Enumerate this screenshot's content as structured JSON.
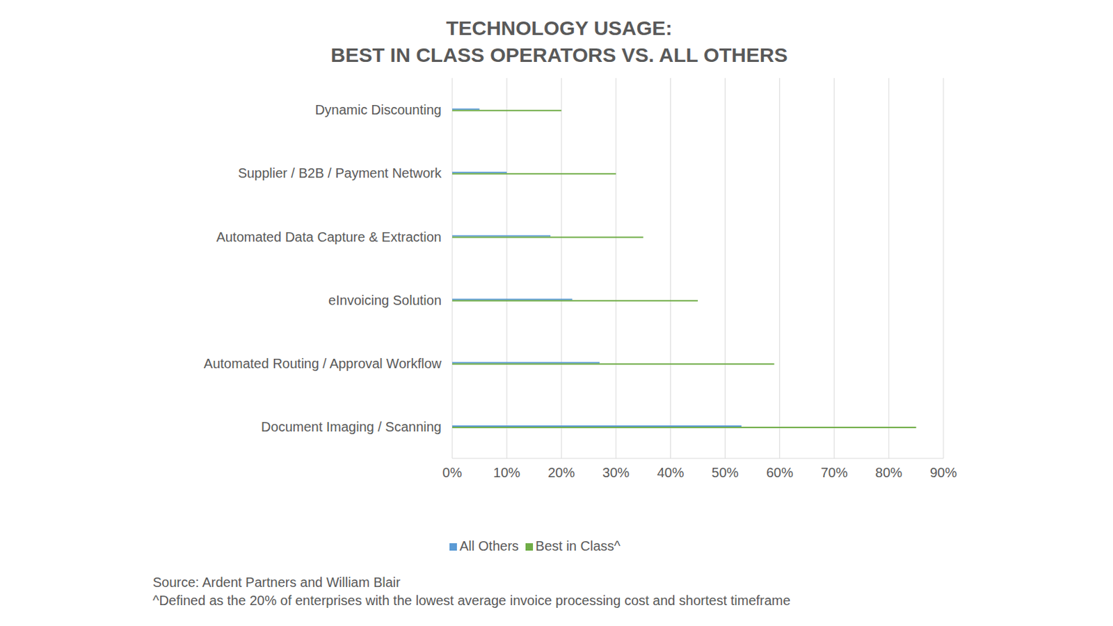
{
  "chart_data": {
    "type": "bar",
    "orientation": "horizontal",
    "title": "TECHNOLOGY USAGE:",
    "subtitle": "BEST IN CLASS OPERATORS VS. ALL OTHERS",
    "categories": [
      "Dynamic Discounting",
      "Supplier / B2B / Payment Network",
      "Automated Data Capture & Extraction",
      "eInvoicing Solution",
      "Automated Routing / Approval Workflow",
      "Document Imaging / Scanning"
    ],
    "series": [
      {
        "name": "All Others",
        "color": "#5b9bd5",
        "values": [
          5,
          10,
          18,
          22,
          27,
          53
        ]
      },
      {
        "name": "Best in Class^",
        "color": "#70ad47",
        "values": [
          20,
          30,
          35,
          45,
          59,
          85
        ]
      }
    ],
    "xlim": [
      0,
      90
    ],
    "xticks": [
      {
        "value": 0,
        "label": "0%"
      },
      {
        "value": 10,
        "label": "10%"
      },
      {
        "value": 20,
        "label": "20%"
      },
      {
        "value": 30,
        "label": "30%"
      },
      {
        "value": 40,
        "label": "40%"
      },
      {
        "value": 50,
        "label": "50%"
      },
      {
        "value": 60,
        "label": "60%"
      },
      {
        "value": 70,
        "label": "70%"
      },
      {
        "value": 80,
        "label": "80%"
      },
      {
        "value": 90,
        "label": "90%"
      }
    ],
    "grid": true,
    "legend": "bottom",
    "annotations": [
      "Source: Ardent Partners and William Blair",
      "^Defined as the 20% of enterprises with the lowest average invoice processing cost and shortest timeframe"
    ]
  }
}
